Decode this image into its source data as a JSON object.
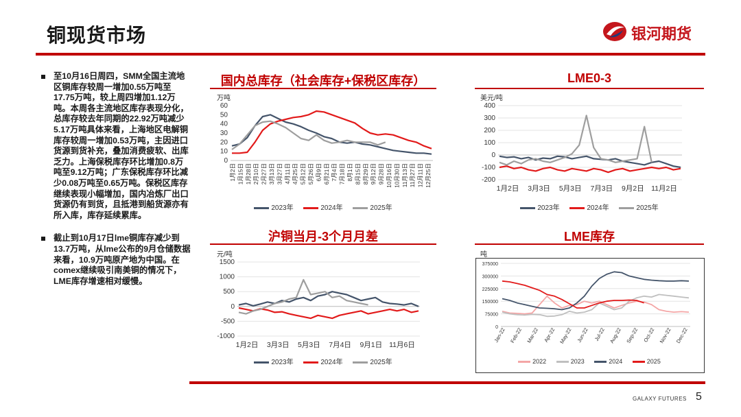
{
  "header": {
    "title": "铜现货市场",
    "brand": "银河期货"
  },
  "bullets": [
    "至10月16日周四，SMM全国主流地区铜库存较周一增加0.55万吨至17.75万吨，较上周四增加1.12万吨。本周各主流地区库存表现分化，总库存较去年同期的22.92万吨减少5.17万吨具体来看，上海地区电解铜库存较周一增加0.53万吨，主因进口货源到货补充，叠加消费疲软、出库乏力。上海保税库存环比增加0.8万吨至9.12万吨；广东保税库存环比减少0.08万吨至0.65万吨。保税区库存继续表现小幅增加，国内冶炼厂出口货源仍有到货，且抵港到船货源亦有所入库，库存延续累库。",
    "截止到10月17日lme铜库存减少到13.7万吨，从lme公布的9月仓储数据来看，10.9万吨原产地为中国。在comex继续吸引南美铜的情况下，LME库存增速相对缓慢。"
  ],
  "colors": {
    "y2023": "#44546a",
    "y2024": "#e21a1a",
    "y2025": "#9e9e9e",
    "lme2022": "#f4a6a6",
    "lme2023": "#bfbfbf",
    "accent": "#c00000"
  },
  "charts": [
    {
      "panel_title": "国内总库存（社会库存+保税区库存）",
      "unit": "万吨",
      "chart_data": {
        "type": "line",
        "title": "国内总库存（社会库存+保税区库存）",
        "ylabel": "万吨",
        "ylim": [
          0,
          60
        ],
        "yticks": [
          "60",
          "50",
          "40",
          "30",
          "20",
          "10",
          "0"
        ],
        "xticks": [
          "1月2日",
          "1月15日",
          "1月28日",
          "2月10日",
          "2月27日",
          "3月13日",
          "3月27日",
          "4月11日",
          "4月25日",
          "5月12日",
          "5月26日",
          "6月9日",
          "6月21日",
          "7月4日",
          "7月18日",
          "8月1日",
          "8月15日",
          "8月29日",
          "9月12日",
          "9月28日",
          "10月16日",
          "10月30日",
          "11月13日",
          "11月27日",
          "12月11日",
          "12月25日"
        ],
        "series": [
          {
            "name": "2023年",
            "values": [
              16,
              18,
              25,
              38,
              48,
              50,
              46,
              42,
              40,
              37,
              33,
              30,
              26,
              24,
              20,
              19,
              20,
              18,
              17,
              15,
              13,
              11,
              10,
              9,
              8,
              8,
              7
            ]
          },
          {
            "name": "2024年",
            "values": [
              8,
              8,
              9,
              20,
              33,
              40,
              43,
              45,
              47,
              48,
              50,
              54,
              53,
              50,
              47,
              44,
              41,
              35,
              30,
              28,
              29,
              28,
              25,
              22,
              20,
              16,
              13
            ]
          },
          {
            "name": "2025年",
            "values": [
              12,
              18,
              28,
              38,
              42,
              43,
              40,
              36,
              30,
              24,
              22,
              28,
              22,
              19,
              20,
              22,
              20,
              20,
              20,
              17,
              20,
              null,
              null,
              null,
              null,
              null,
              null
            ]
          }
        ],
        "legend": [
          "2023年",
          "2024年",
          "2025年"
        ]
      }
    },
    {
      "panel_title": "LME0-3",
      "unit": "美元/吨",
      "chart_data": {
        "type": "line",
        "title": "LME0-3",
        "ylabel": "美元/吨",
        "ylim": [
          -200,
          400
        ],
        "yticks": [
          "400",
          "300",
          "200",
          "100",
          "0",
          "-100",
          "-200"
        ],
        "xticks": [
          "1月2日",
          "3月3日",
          "5月3日",
          "7月3日",
          "9月2日",
          "11月2日"
        ],
        "series": [
          {
            "name": "2023年",
            "values": [
              -10,
              -20,
              -15,
              -30,
              -20,
              -40,
              -25,
              -30,
              -10,
              -15,
              -30,
              -20,
              -10,
              -30,
              -35,
              -40,
              -30,
              -50,
              -60,
              -70,
              -80,
              -60,
              -50,
              -70,
              -90,
              -100
            ]
          },
          {
            "name": "2024年",
            "values": [
              -100,
              -90,
              -110,
              -100,
              -120,
              -130,
              -110,
              -100,
              -120,
              -130,
              -110,
              -120,
              -130,
              -110,
              -120,
              -140,
              -120,
              -110,
              -130,
              -120,
              -110,
              -100,
              -110,
              -100,
              -120,
              -110
            ]
          },
          {
            "name": "2025年",
            "values": [
              -60,
              -80,
              -50,
              -70,
              -40,
              -30,
              -50,
              -60,
              -40,
              -20,
              10,
              80,
              320,
              60,
              -30,
              -40,
              -60,
              -50,
              -40,
              -30,
              230,
              -60,
              null,
              null,
              null,
              null
            ]
          }
        ],
        "legend": [
          "2023年",
          "2024年",
          "2025年"
        ]
      }
    },
    {
      "panel_title": "沪铜当月-3个月月差",
      "unit": "元/吨",
      "chart_data": {
        "type": "line",
        "title": "沪铜当月-3个月月差",
        "ylabel": "元/吨",
        "ylim": [
          -1000,
          1500
        ],
        "yticks": [
          "1500",
          "1000",
          "500",
          "0",
          "-500",
          "-1000"
        ],
        "xticks": [
          "1月2日",
          "3月3日",
          "5月3日",
          "7月4日",
          "9月1日",
          "11月6日"
        ],
        "series": [
          {
            "name": "2023年",
            "values": [
              50,
              100,
              20,
              80,
              150,
              100,
              200,
              150,
              250,
              300,
              200,
              350,
              400,
              500,
              450,
              400,
              300,
              200,
              250,
              300,
              150,
              100,
              80,
              50,
              100,
              0
            ]
          },
          {
            "name": "2024年",
            "values": [
              -50,
              -100,
              -150,
              -80,
              -120,
              -200,
              -180,
              -250,
              -300,
              -350,
              -400,
              -300,
              -350,
              -400,
              -300,
              -250,
              -200,
              -150,
              -250,
              -200,
              -150,
              -100,
              -150,
              -100,
              -200,
              -150
            ]
          },
          {
            "name": "2025年",
            "values": [
              -200,
              -250,
              -150,
              -100,
              0,
              100,
              150,
              250,
              300,
              900,
              400,
              450,
              500,
              300,
              350,
              200,
              150,
              100,
              50,
              null,
              null,
              null,
              null,
              null,
              null,
              null
            ]
          }
        ],
        "legend": [
          "2023年",
          "2024年",
          "2025年"
        ]
      }
    },
    {
      "panel_title": "LME库存",
      "unit": "吨",
      "chart_data": {
        "type": "line",
        "title": "LME库存",
        "ylabel": "吨",
        "ylim": [
          0,
          375000
        ],
        "yticks": [
          "375000",
          "300000",
          "225000",
          "150000",
          "75000",
          "0"
        ],
        "xticks": [
          "Jan-22",
          "Feb-22",
          "Mar-22",
          "Apr-22",
          "May-22",
          "Jun-22",
          "Jul-22",
          "Aug-22",
          "Sep-22",
          "Oct-22",
          "Nov-22",
          "Dec-22"
        ],
        "series": [
          {
            "name": "2022",
            "values": [
              90000,
              80000,
              78000,
              75000,
              80000,
              130000,
              180000,
              140000,
              110000,
              125000,
              130000,
              150000,
              140000,
              150000,
              130000,
              110000,
              125000,
              140000,
              150000,
              145000,
              130000,
              100000,
              90000,
              85000,
              88000,
              85000
            ]
          },
          {
            "name": "2023",
            "values": [
              85000,
              75000,
              70000,
              68000,
              72000,
              70000,
              60000,
              62000,
              70000,
              90000,
              80000,
              85000,
              100000,
              140000,
              120000,
              100000,
              110000,
              150000,
              170000,
              180000,
              175000,
              190000,
              185000,
              180000,
              175000,
              170000
            ]
          },
          {
            "name": "2024",
            "values": [
              165000,
              155000,
              140000,
              130000,
              120000,
              110000,
              108000,
              105000,
              100000,
              110000,
              140000,
              180000,
              240000,
              285000,
              310000,
              325000,
              320000,
              300000,
              290000,
              280000,
              275000,
              272000,
              270000,
              270000,
              272000,
              270000
            ]
          },
          {
            "name": "2025",
            "values": [
              270000,
              265000,
              255000,
              245000,
              230000,
              215000,
              190000,
              180000,
              160000,
              135000,
              110000,
              110000,
              125000,
              140000,
              150000,
              155000,
              155000,
              157000,
              155000,
              140000,
              null,
              null,
              null,
              null,
              null,
              null
            ]
          }
        ],
        "legend": [
          "2022",
          "2023",
          "2024",
          "2025"
        ]
      }
    }
  ],
  "footer": {
    "brand": "GALAXY FUTURES",
    "page": "5"
  }
}
